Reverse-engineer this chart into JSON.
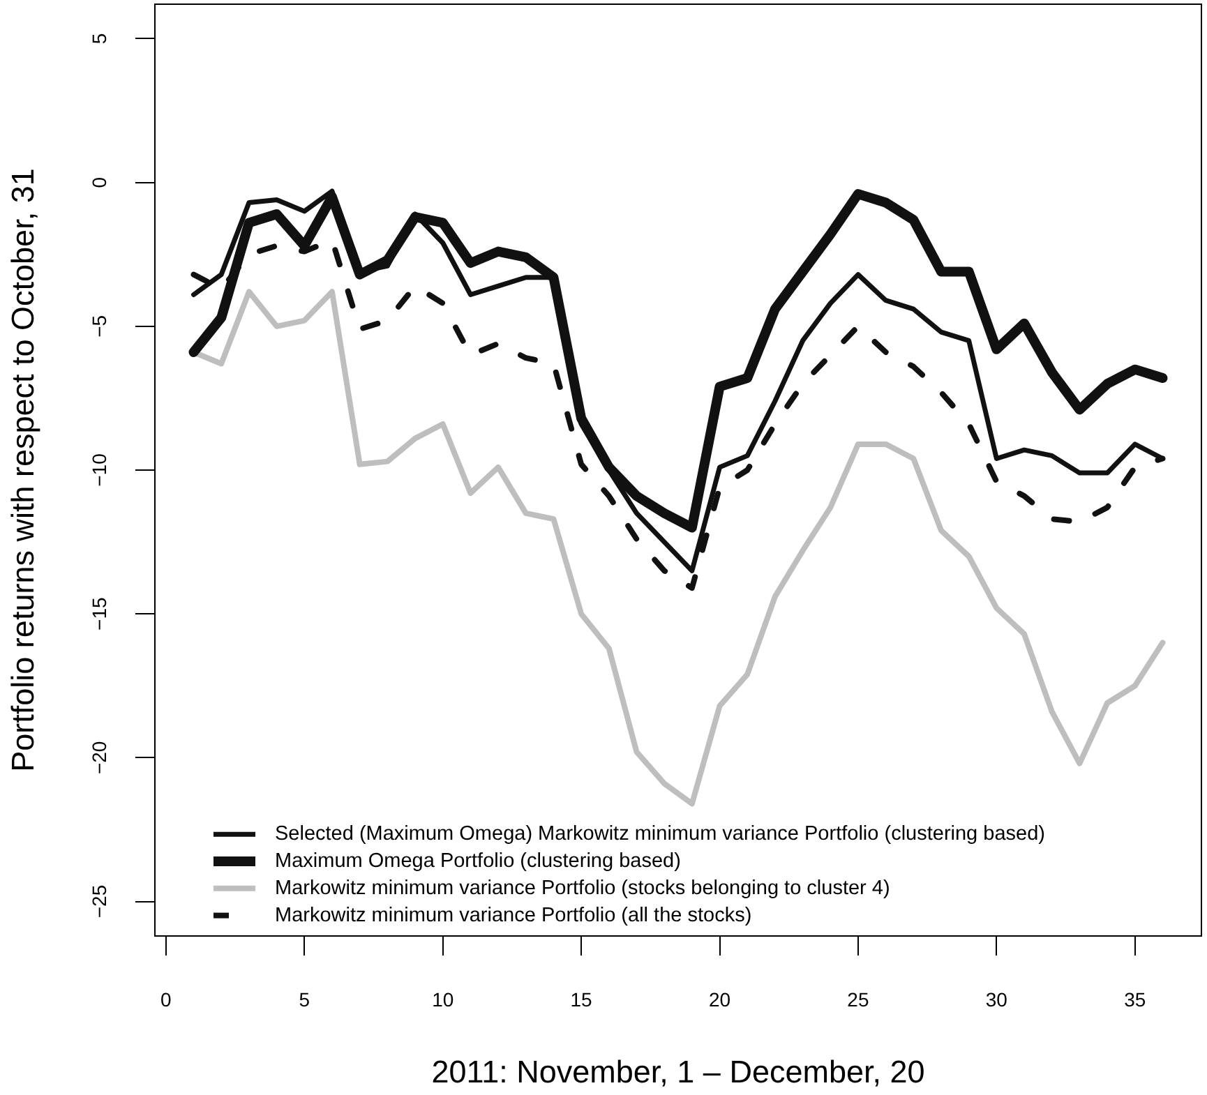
{
  "chart_data": {
    "type": "line",
    "xlabel": "2011: November, 1 – December, 20",
    "ylabel": "Portfolio returns with respect to October, 31",
    "x": [
      1,
      2,
      3,
      4,
      5,
      6,
      7,
      8,
      9,
      10,
      11,
      12,
      13,
      14,
      15,
      16,
      17,
      18,
      19,
      20,
      21,
      22,
      23,
      24,
      25,
      26,
      27,
      28,
      29,
      30,
      31,
      32,
      33,
      34,
      35,
      36
    ],
    "xlim": [
      -0.4,
      37.4
    ],
    "xticks": [
      0,
      5,
      10,
      15,
      20,
      25,
      30,
      35
    ],
    "ylim": [
      -26.2,
      6.2
    ],
    "yticks": [
      {
        "value": -25,
        "label": "−25"
      },
      {
        "value": -20,
        "label": "−20"
      },
      {
        "value": -15,
        "label": "−15"
      },
      {
        "value": -10,
        "label": "−10"
      },
      {
        "value": -5,
        "label": "−5"
      },
      0,
      5
    ],
    "legend": "bottom left",
    "series": [
      {
        "name": "Selected (Maximum Omega) Markowitz minimum variance Portfolio (clustering based)",
        "color": "#111111",
        "values": [
          -3.9,
          -3.2,
          -0.7,
          -0.6,
          -1.0,
          -0.3,
          -3.1,
          -2.9,
          -1.1,
          -2.1,
          -3.9,
          -3.6,
          -3.3,
          -3.3,
          -8.4,
          -10.0,
          -11.5,
          -12.5,
          -13.5,
          -9.9,
          -9.5,
          -7.6,
          -5.5,
          -4.2,
          -3.2,
          -4.1,
          -4.4,
          -5.2,
          -5.5,
          -9.6,
          -9.3,
          -9.5,
          -10.1,
          -10.1,
          -9.1,
          -9.6
        ]
      },
      {
        "name": "Maximum Omega Portfolio (clustering based)",
        "color": "#111111",
        "values": [
          -5.9,
          -4.7,
          -1.4,
          -1.1,
          -2.2,
          -0.5,
          -3.2,
          -2.7,
          -1.2,
          -1.4,
          -2.8,
          -2.4,
          -2.6,
          -3.3,
          -8.2,
          -9.9,
          -10.9,
          -11.5,
          -12.0,
          -7.1,
          -6.8,
          -4.4,
          -3.1,
          -1.8,
          -0.4,
          -0.7,
          -1.3,
          -3.1,
          -3.1,
          -5.8,
          -4.9,
          -6.6,
          -7.9,
          -7.0,
          -6.5,
          -6.8
        ]
      },
      {
        "name": "Markowitz minimum variance Portfolio (stocks belonging to cluster 4)",
        "color": "#bebebe",
        "values": [
          -5.9,
          -6.3,
          -3.8,
          -5.0,
          -4.8,
          -3.8,
          -9.8,
          -9.7,
          -8.9,
          -8.4,
          -10.8,
          -9.9,
          -11.5,
          -11.7,
          -15.0,
          -16.2,
          -19.8,
          -20.9,
          -21.6,
          -18.2,
          -17.1,
          -14.4,
          -12.8,
          -11.3,
          -9.1,
          -9.1,
          -9.6,
          -12.1,
          -13.0,
          -14.8,
          -15.7,
          -18.4,
          -20.2,
          -18.1,
          -17.5,
          -16.0
        ]
      },
      {
        "name": "Markowitz minimum variance Portfolio (all the stocks)",
        "color": "#111111",
        "line_style": "dashed",
        "values": [
          -3.2,
          -3.7,
          -2.5,
          -2.2,
          -2.4,
          -2.0,
          -5.1,
          -4.8,
          -3.6,
          -4.2,
          -6.0,
          -5.6,
          -6.1,
          -6.3,
          -9.8,
          -10.9,
          -12.4,
          -13.5,
          -14.1,
          -10.6,
          -10.0,
          -8.4,
          -7.0,
          -6.0,
          -5.0,
          -5.9,
          -6.4,
          -7.3,
          -8.4,
          -10.4,
          -10.9,
          -11.7,
          -11.8,
          -11.3,
          -9.9,
          -9.6
        ]
      }
    ]
  }
}
